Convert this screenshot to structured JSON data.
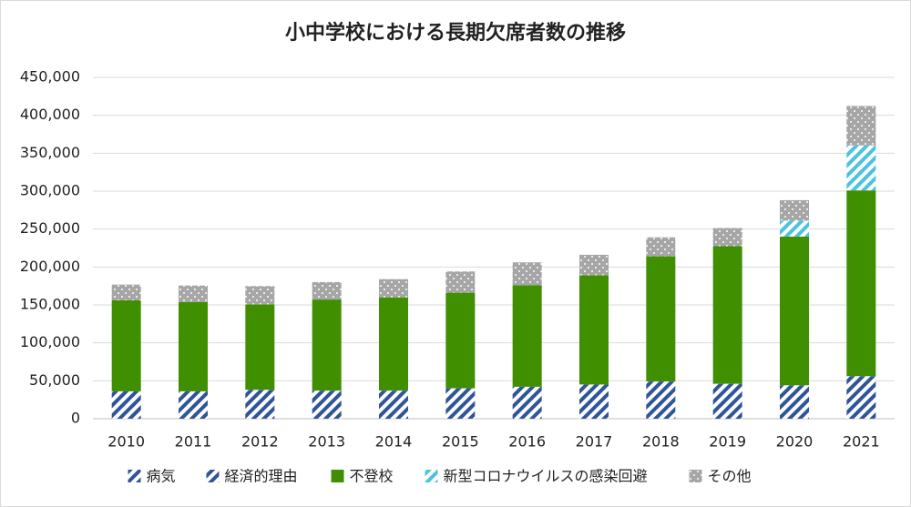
{
  "chart_data": {
    "type": "stacked_bar",
    "title": "小中学校における長期欠席者数の推移",
    "categories": [
      "2010",
      "2011",
      "2012",
      "2013",
      "2014",
      "2015",
      "2016",
      "2017",
      "2018",
      "2019",
      "2020",
      "2021"
    ],
    "series": [
      {
        "name": "病気",
        "color": "#2f5597",
        "pattern": "hatch",
        "values": [
          36000,
          36000,
          38000,
          37000,
          37000,
          40000,
          42000,
          45000,
          49000,
          46000,
          44000,
          56000
        ]
      },
      {
        "name": "経済的理由",
        "color": "#2f5597",
        "pattern": "hatch",
        "values": [
          100,
          100,
          100,
          100,
          100,
          100,
          100,
          100,
          100,
          100,
          100,
          100
        ]
      },
      {
        "name": "不登校",
        "color": "#3f8f00",
        "pattern": "solid",
        "values": [
          119900,
          117500,
          112700,
          120000,
          122900,
          126000,
          134000,
          144000,
          165000,
          181300,
          196100,
          244900
        ]
      },
      {
        "name": "新型コロナウイルスの感染回避",
        "color": "#4bc3de",
        "pattern": "hatch",
        "values": [
          0,
          0,
          0,
          0,
          0,
          0,
          0,
          0,
          0,
          0,
          20900,
          59300
        ]
      },
      {
        "name": "その他",
        "color": "#a6a6a6",
        "pattern": "dots",
        "values": [
          20800,
          22000,
          24000,
          23000,
          24000,
          28000,
          30000,
          27000,
          25000,
          24000,
          27000,
          52000
        ]
      }
    ],
    "ylim": [
      0,
      450000
    ],
    "yticks": [
      0,
      {
        "value": 50000,
        "label": "50,000"
      },
      {
        "value": 100000,
        "label": "100,000"
      },
      {
        "value": 150000,
        "label": "150,000"
      },
      {
        "value": 200000,
        "label": "200,000"
      },
      {
        "value": 250000,
        "label": "250,000"
      },
      {
        "value": 300000,
        "label": "300,000"
      },
      {
        "value": 350000,
        "label": "350,000"
      },
      {
        "value": 400000,
        "label": "400,000"
      },
      {
        "value": 450000,
        "label": "450,000"
      }
    ],
    "grid": true,
    "legend": "bottom"
  }
}
